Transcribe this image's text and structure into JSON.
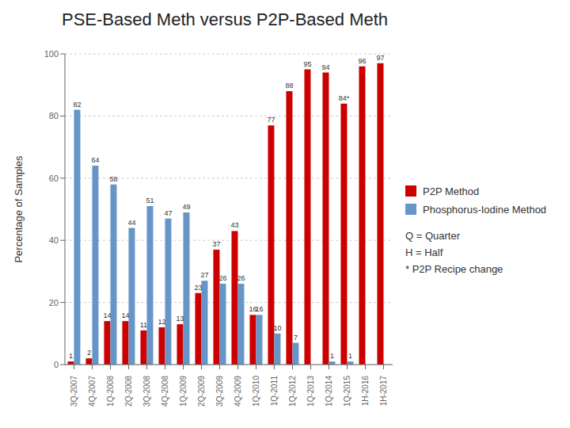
{
  "chart_data": {
    "type": "bar",
    "title": "PSE-Based Meth versus P2P-Based Meth",
    "y_label": "Percentage of Samples",
    "categories": [
      "3Q-2007",
      "4Q-2007",
      "1Q-2008",
      "2Q-2008",
      "3Q-2008",
      "4Q-2008",
      "1Q-2009",
      "2Q-2009",
      "3Q-2009",
      "4Q-2009",
      "1Q-2010",
      "1Q-2011",
      "1Q-2012",
      "1Q-2013",
      "1Q-2014",
      "1Q-2015",
      "1H-2016",
      "1H-2017"
    ],
    "series": [
      {
        "name": "P2P Method",
        "color": "#CC0000",
        "values": [
          1,
          2,
          14,
          14,
          11,
          12,
          13,
          23,
          37,
          43,
          16,
          77,
          88,
          95,
          94,
          84,
          96,
          97
        ],
        "value_labels": [
          "1",
          "2",
          "14",
          "14",
          "11",
          "12",
          "13",
          "23",
          "37",
          "43",
          "16",
          "77",
          "88",
          "95",
          "94",
          "84*",
          "96",
          "97"
        ]
      },
      {
        "name": "Phosphorus-Iodine Method",
        "color": "#6695C8",
        "values": [
          82,
          64,
          58,
          44,
          51,
          47,
          49,
          27,
          26,
          26,
          16,
          10,
          7,
          null,
          1,
          1,
          0,
          0
        ]
      }
    ],
    "ylim": [
      0,
      100
    ],
    "yticks": [
      0,
      20,
      40,
      60,
      80,
      100
    ],
    "grid": true,
    "legend": "right",
    "data_labels": true,
    "annotations": [
      "Q = Quarter",
      "H = Half",
      "* P2P Recipe change"
    ]
  }
}
